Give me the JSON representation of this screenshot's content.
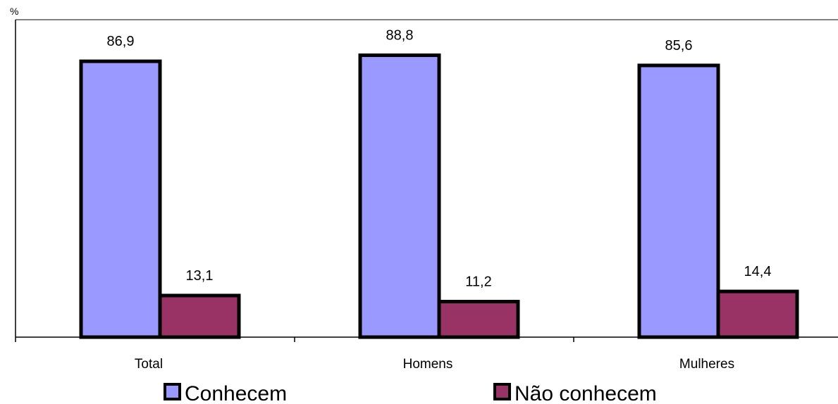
{
  "chart_data": {
    "type": "bar",
    "ylabel": "%",
    "categories": [
      "Total",
      "Homens",
      "Mulheres"
    ],
    "series": [
      {
        "name": "Conhecem",
        "values": [
          86.9,
          88.8,
          85.6
        ],
        "labels": [
          "86,9",
          "88,8",
          "85,6"
        ],
        "color": "#9999ff"
      },
      {
        "name": "Não conhecem",
        "values": [
          13.1,
          11.2,
          14.4
        ],
        "labels": [
          "13,1",
          "11,2",
          "14,4"
        ],
        "color": "#993366"
      }
    ],
    "ylim": [
      0,
      100
    ],
    "grid": false,
    "legend_position": "bottom"
  }
}
